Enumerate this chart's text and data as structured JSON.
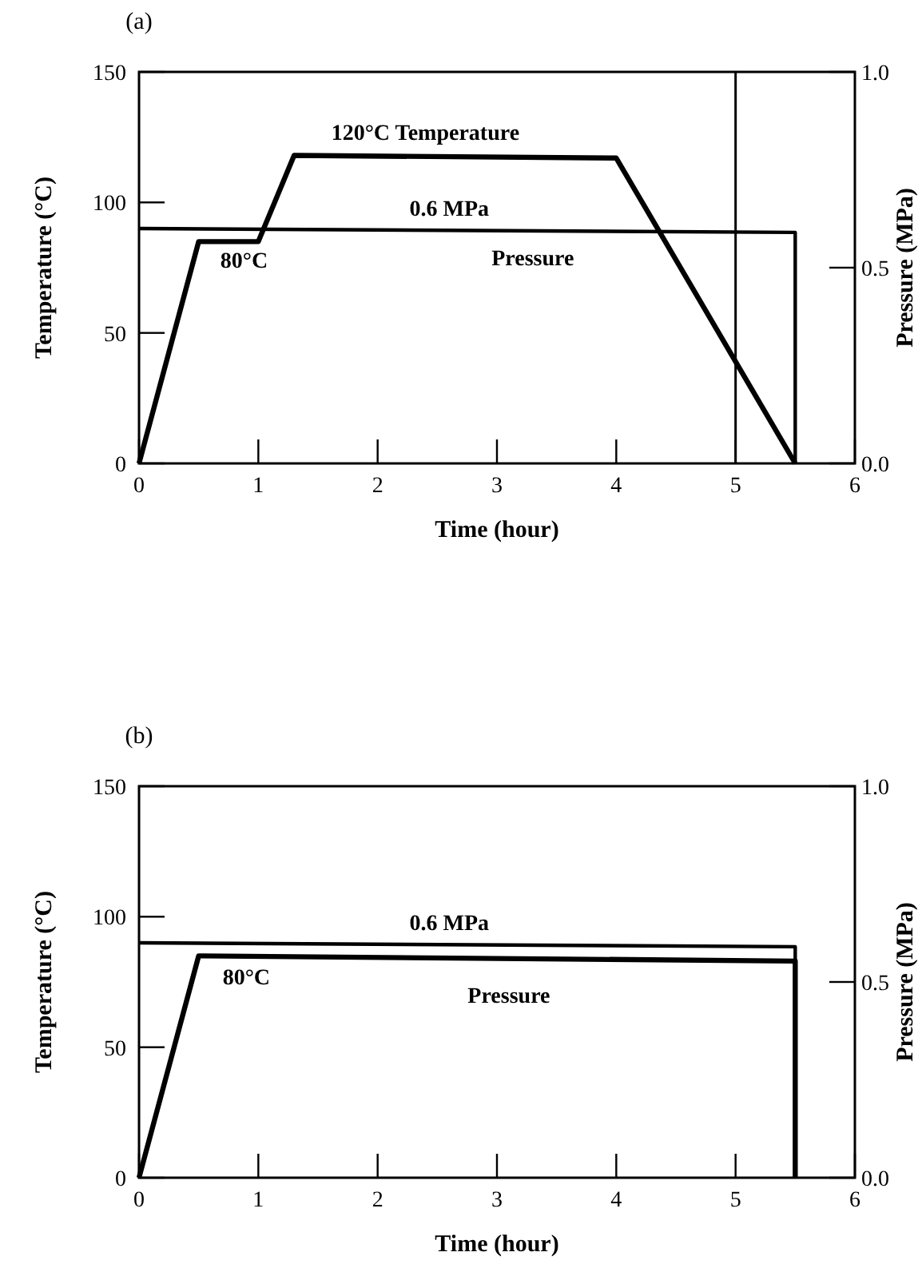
{
  "chart_data": [
    {
      "type": "line",
      "title": "(a)",
      "xlabel": "Time (hour)",
      "ylabel": "Temperature (°C)",
      "y2label": "Pressure (MPa)",
      "xlim": [
        0,
        6
      ],
      "xticks": [
        0,
        1,
        2,
        3,
        4,
        5,
        6
      ],
      "ylim": [
        0,
        150
      ],
      "yticks": [
        0,
        50,
        100,
        150
      ],
      "y2lim": [
        0,
        1
      ],
      "y2ticks": [
        {
          "value": 0,
          "label": "0.0"
        },
        {
          "value": 0.5,
          "label": "0.5"
        },
        {
          "value": 1,
          "label": "1.0"
        }
      ],
      "marker": "none",
      "line_style": "solid",
      "grid": false,
      "series": [
        {
          "color": "#000000",
          "x": [
            0,
            0.5,
            1,
            1.3,
            4,
            5.5
          ],
          "values": [
            0,
            85,
            85,
            118,
            117,
            0
          ]
        },
        {
          "color": "#000000",
          "axis": "y2",
          "x": [
            0,
            5.5,
            5.5
          ],
          "values": [
            0.6,
            0.59,
            0
          ]
        }
      ],
      "ref_lines": [
        {
          "axis": "x",
          "value": 5,
          "color": "#000000"
        }
      ],
      "annotations": [
        "120°C Temperature",
        "0.6 MPa",
        "80°C",
        "Pressure"
      ]
    },
    {
      "type": "line",
      "title": "(b)",
      "xlabel": "Time (hour)",
      "ylabel": "Temperature (°C)",
      "y2label": "Pressure (MPa)",
      "xlim": [
        0,
        6
      ],
      "xticks": [
        0,
        1,
        2,
        3,
        4,
        5,
        6
      ],
      "ylim": [
        0,
        150
      ],
      "yticks": [
        0,
        50,
        100,
        150
      ],
      "y2lim": [
        0,
        1
      ],
      "y2ticks": [
        {
          "value": 0,
          "label": "0.0"
        },
        {
          "value": 0.5,
          "label": "0.5"
        },
        {
          "value": 1,
          "label": "1.0"
        }
      ],
      "marker": "none",
      "line_style": "solid",
      "grid": false,
      "series": [
        {
          "color": "#000000",
          "x": [
            0,
            0.5,
            5.5,
            5.5
          ],
          "values": [
            0,
            85,
            83,
            0
          ]
        },
        {
          "color": "#000000",
          "axis": "y2",
          "x": [
            0,
            5.5,
            5.5
          ],
          "values": [
            0.6,
            0.59,
            0
          ]
        }
      ],
      "annotations": [
        "0.6 MPa",
        "80°C",
        "Pressure"
      ]
    }
  ]
}
